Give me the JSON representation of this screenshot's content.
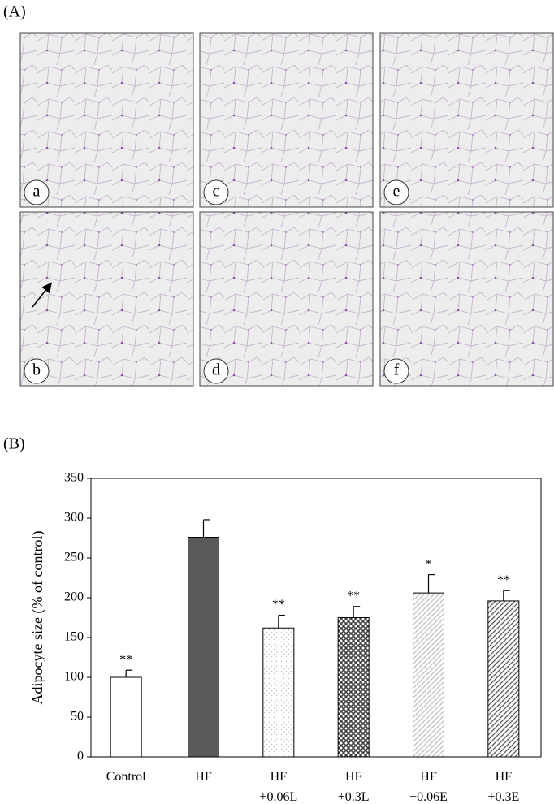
{
  "panels": {
    "a": {
      "label": "(A)",
      "images": [
        "a",
        "c",
        "e",
        "b",
        "d",
        "f"
      ]
    },
    "b": {
      "label": "(B)"
    }
  },
  "chart_data": {
    "type": "bar",
    "y_label": "Adipocyte size (% of control)",
    "categories": [
      "Control",
      "HF",
      "HF\n+0.06L",
      "HF\n+0.3L",
      "HF\n+0.06E",
      "HF\n+0.3E"
    ],
    "values": [
      100,
      276,
      162,
      175,
      206,
      196
    ],
    "errors": [
      9,
      22,
      16,
      14,
      23,
      13
    ],
    "value_labels": [
      "**",
      null,
      "**",
      "**",
      "*",
      "**"
    ],
    "colors": [
      "#ffffff",
      "#595959",
      "#bfbfbf",
      "#404040",
      "#bfbfbf",
      "#595959"
    ],
    "hatch": [
      "none",
      "none",
      "dots",
      "cross",
      "diagonal",
      "diagonal"
    ],
    "ylim": [
      0,
      350
    ],
    "yticks": [
      0,
      50,
      100,
      150,
      200,
      250,
      300,
      350
    ],
    "grid": false
  }
}
